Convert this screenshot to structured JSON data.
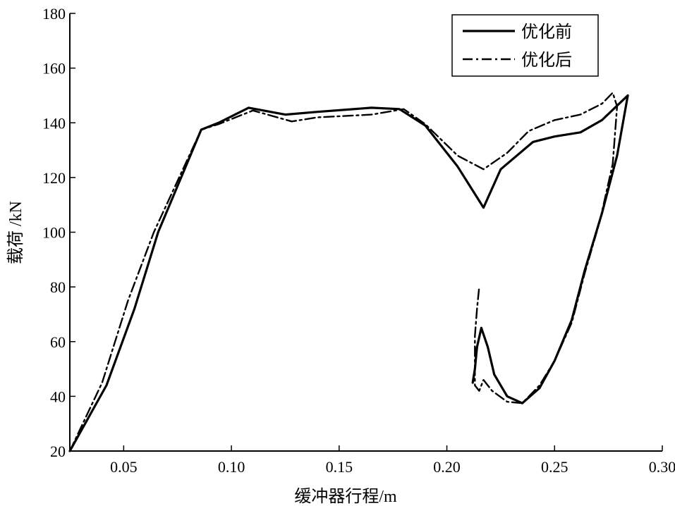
{
  "chart_data": {
    "type": "line",
    "title": "",
    "xlabel": "缓冲器行程/m",
    "ylabel": "载荷 /kN",
    "xlim": [
      0.025,
      0.3
    ],
    "ylim": [
      20,
      180
    ],
    "xticks": [
      0.05,
      0.1,
      0.15,
      0.2,
      0.25,
      0.3
    ],
    "xtick_labels": [
      "0.05",
      "0.10",
      "0.15",
      "0.20",
      "0.25",
      "0.30"
    ],
    "yticks": [
      20,
      40,
      60,
      80,
      100,
      120,
      140,
      160,
      180
    ],
    "ytick_labels": [
      "20",
      "40",
      "60",
      "80",
      "100",
      "120",
      "140",
      "160",
      "180"
    ],
    "grid": false,
    "legend_position": "top-right",
    "series": [
      {
        "name": "优化前",
        "style": "solid",
        "color": "#000000",
        "points": [
          [
            0.025,
            20
          ],
          [
            0.042,
            44
          ],
          [
            0.055,
            72
          ],
          [
            0.066,
            100
          ],
          [
            0.086,
            137.5
          ],
          [
            0.094,
            140
          ],
          [
            0.108,
            145.5
          ],
          [
            0.125,
            143
          ],
          [
            0.14,
            144
          ],
          [
            0.165,
            145.5
          ],
          [
            0.178,
            145
          ],
          [
            0.19,
            139
          ],
          [
            0.205,
            124
          ],
          [
            0.217,
            109
          ],
          [
            0.225,
            123
          ],
          [
            0.24,
            133
          ],
          [
            0.25,
            135
          ],
          [
            0.262,
            136.5
          ],
          [
            0.272,
            141
          ],
          [
            0.284,
            150
          ],
          [
            0.279,
            128
          ],
          [
            0.272,
            107
          ],
          [
            0.264,
            86
          ],
          [
            0.258,
            68
          ],
          [
            0.25,
            53
          ],
          [
            0.243,
            43
          ],
          [
            0.235,
            37.5
          ],
          [
            0.228,
            40
          ],
          [
            0.222,
            48
          ],
          [
            0.219,
            58
          ],
          [
            0.216,
            65
          ],
          [
            0.214,
            58
          ],
          [
            0.213,
            50
          ],
          [
            0.212,
            45
          ]
        ]
      },
      {
        "name": "优化后",
        "style": "dash-dot",
        "color": "#000000",
        "points": [
          [
            0.025,
            20
          ],
          [
            0.04,
            45
          ],
          [
            0.052,
            75
          ],
          [
            0.064,
            100
          ],
          [
            0.086,
            137.5
          ],
          [
            0.094,
            139.5
          ],
          [
            0.11,
            144.5
          ],
          [
            0.128,
            140.5
          ],
          [
            0.14,
            142
          ],
          [
            0.165,
            143
          ],
          [
            0.18,
            145
          ],
          [
            0.19,
            139.5
          ],
          [
            0.205,
            128
          ],
          [
            0.217,
            123
          ],
          [
            0.228,
            129
          ],
          [
            0.238,
            137
          ],
          [
            0.25,
            141
          ],
          [
            0.262,
            143
          ],
          [
            0.272,
            147
          ],
          [
            0.277,
            151
          ],
          [
            0.279,
            146
          ],
          [
            0.277,
            125
          ],
          [
            0.271,
            104
          ],
          [
            0.264,
            85
          ],
          [
            0.258,
            67
          ],
          [
            0.25,
            53
          ],
          [
            0.243,
            44
          ],
          [
            0.235,
            37.5
          ],
          [
            0.228,
            38
          ],
          [
            0.221,
            42
          ],
          [
            0.217,
            46
          ],
          [
            0.215,
            42
          ],
          [
            0.213,
            44
          ],
          [
            0.213,
            55
          ],
          [
            0.213,
            62
          ],
          [
            0.214,
            72
          ],
          [
            0.215,
            80
          ]
        ]
      }
    ]
  }
}
